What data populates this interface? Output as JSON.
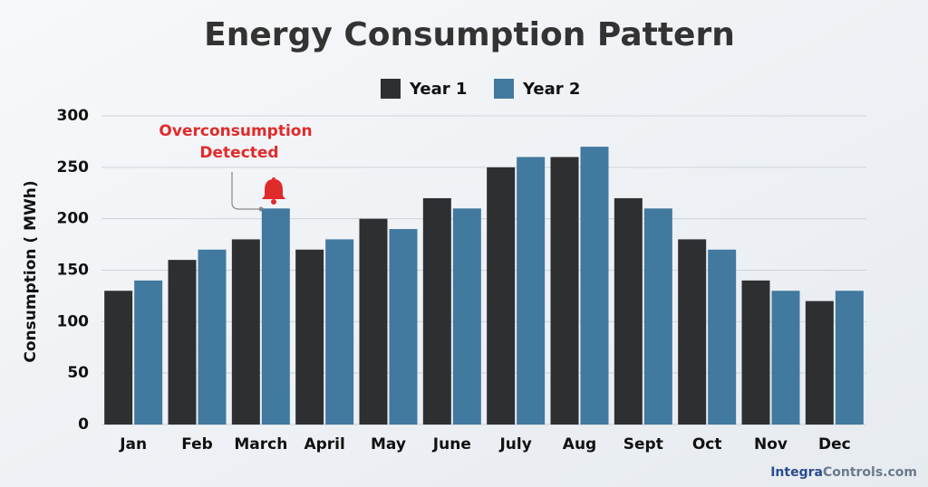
{
  "chart_data": {
    "type": "bar",
    "title": "Energy Consumption Pattern",
    "y_label": "Consumption  ( MWh)",
    "categories": [
      "Jan",
      "Feb",
      "March",
      "April",
      "May",
      "June",
      "July",
      "Aug",
      "Sept",
      "Oct",
      "Nov",
      "Dec"
    ],
    "series": [
      {
        "name": "Year 1",
        "color": "#2d2f31",
        "values": [
          130,
          160,
          180,
          170,
          200,
          220,
          250,
          260,
          220,
          180,
          140,
          120
        ]
      },
      {
        "name": "Year 2",
        "color": "#41799f",
        "values": [
          140,
          170,
          210,
          180,
          190,
          210,
          260,
          270,
          210,
          170,
          130,
          130
        ]
      }
    ],
    "ylim": [
      0,
      300
    ],
    "yticks": [
      0,
      50,
      100,
      150,
      200,
      250,
      300
    ],
    "grid": true,
    "annotation": [
      "Overconsumption",
      "Detected"
    ],
    "watermark": [
      "Integra",
      "Controls.com"
    ]
  }
}
